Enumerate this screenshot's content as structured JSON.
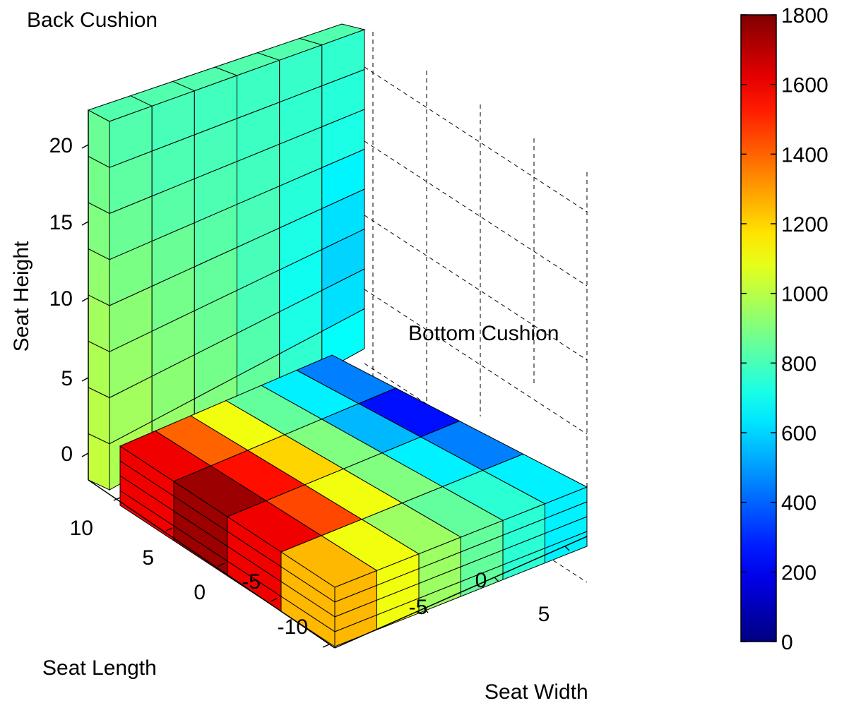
{
  "chart_data": {
    "type": "heatmap",
    "title": "",
    "annotations": {
      "back": "Back Cushion",
      "bottom": "Bottom Cushion"
    },
    "xlabel": "Seat Width",
    "ylabel": "Seat Length",
    "zlabel": "Seat Height",
    "x_ticks": [
      "-5",
      "0",
      "5"
    ],
    "y_ticks": [
      "-10",
      "-5",
      "0",
      "5",
      "10"
    ],
    "z_ticks": [
      "0",
      "5",
      "10",
      "15",
      "20"
    ],
    "colorbar": {
      "min": 0,
      "max": 1800,
      "ticks": [
        "0",
        "200",
        "400",
        "600",
        "800",
        "1000",
        "1200",
        "1400",
        "1600",
        "1800"
      ],
      "colormap": "jet"
    },
    "bottom_cushion": {
      "rows_label": "seat length rows from rear (+y) to front (-y); columns from left (-x) to right (+x)",
      "values": [
        [
          1600,
          1400,
          1100,
          850,
          650,
          450
        ],
        [
          1750,
          1550,
          1200,
          900,
          550,
          250
        ],
        [
          1600,
          1450,
          1100,
          900,
          650,
          450
        ],
        [
          1250,
          1100,
          950,
          850,
          750,
          650
        ]
      ]
    },
    "back_cushion": {
      "rows_label": "seat height rows from top to bottom; columns from left (-x) to right (+x)",
      "values": [
        [
          820,
          800,
          790,
          780,
          770,
          760
        ],
        [
          840,
          810,
          800,
          780,
          760,
          740
        ],
        [
          860,
          830,
          810,
          790,
          760,
          720
        ],
        [
          890,
          860,
          830,
          800,
          740,
          660
        ],
        [
          920,
          880,
          850,
          800,
          720,
          620
        ],
        [
          940,
          900,
          860,
          800,
          700,
          600
        ],
        [
          960,
          920,
          880,
          820,
          720,
          620
        ],
        [
          980,
          940,
          900,
          850,
          760,
          680
        ]
      ]
    }
  }
}
